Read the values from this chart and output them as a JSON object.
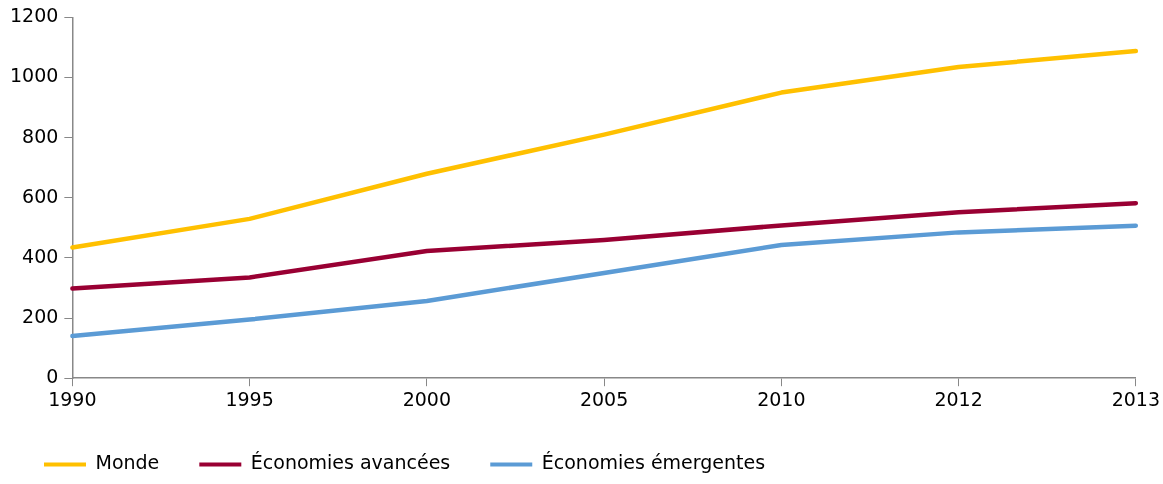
{
  "chart_data": {
    "type": "line",
    "categories": [
      "1990",
      "1995",
      "2000",
      "2005",
      "2010",
      "2012",
      "2013"
    ],
    "series": [
      {
        "name": "Monde",
        "color": "#ffc000",
        "values": [
          435,
          530,
          680,
          810,
          950,
          1035,
          1088
        ]
      },
      {
        "name": "Économies avancées",
        "color": "#990033",
        "values": [
          298,
          335,
          423,
          460,
          508,
          552,
          582
        ]
      },
      {
        "name": "Économies émergentes",
        "color": "#5b9bd5",
        "values": [
          140,
          195,
          257,
          350,
          443,
          485,
          507
        ]
      }
    ],
    "ylim": [
      0,
      1200
    ],
    "yticks": [
      0,
      200,
      400,
      600,
      800,
      1000,
      1200
    ],
    "grid": false,
    "legend": "bottom",
    "marker": "none",
    "line_style": "solid"
  }
}
